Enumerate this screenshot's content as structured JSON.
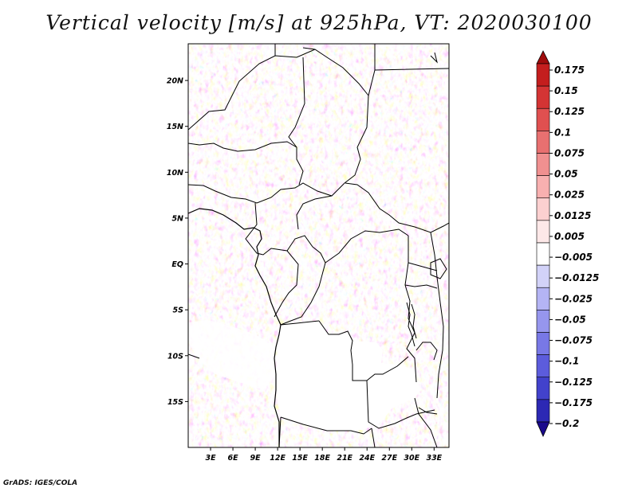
{
  "title": "Vertical velocity [m/s] at 925hPa, VT: 2020030100",
  "credit": "GrADS: IGES/COLA",
  "map": {
    "lon_range": [
      0,
      35
    ],
    "lat_range": [
      -20,
      24
    ],
    "lat_ticks": [
      {
        "value": 20,
        "label": "20N"
      },
      {
        "value": 15,
        "label": "15N"
      },
      {
        "value": 10,
        "label": "10N"
      },
      {
        "value": 5,
        "label": "5N"
      },
      {
        "value": 0,
        "label": "EQ"
      },
      {
        "value": -5,
        "label": "5S"
      },
      {
        "value": -10,
        "label": "10S"
      },
      {
        "value": -15,
        "label": "15S"
      }
    ],
    "lon_ticks": [
      {
        "value": 3,
        "label": "3E"
      },
      {
        "value": 6,
        "label": "6E"
      },
      {
        "value": 9,
        "label": "9E"
      },
      {
        "value": 12,
        "label": "12E"
      },
      {
        "value": 15,
        "label": "15E"
      },
      {
        "value": 18,
        "label": "18E"
      },
      {
        "value": 21,
        "label": "21E"
      },
      {
        "value": 24,
        "label": "24E"
      },
      {
        "value": 27,
        "label": "27E"
      },
      {
        "value": 30,
        "label": "30E"
      },
      {
        "value": 33,
        "label": "33E"
      }
    ]
  },
  "colorbar": {
    "colors": [
      "#1a0a8c",
      "#2c28b4",
      "#4242cc",
      "#5c5cdc",
      "#7878e6",
      "#9696ee",
      "#b4b4f4",
      "#d2d2f8",
      "#ffffff",
      "#fde8e8",
      "#fcd0d0",
      "#f8b0b0",
      "#f09090",
      "#e87070",
      "#e05050",
      "#d43434",
      "#c41e1e",
      "#a00c0c"
    ],
    "labels": [
      "0.175",
      "0.15",
      "0.125",
      "0.1",
      "0.075",
      "0.05",
      "0.025",
      "0.0125",
      "0.005",
      "−0.005",
      "−0.0125",
      "−0.025",
      "−0.05",
      "−0.075",
      "−0.1",
      "−0.125",
      "−0.175",
      "−0.2"
    ]
  }
}
